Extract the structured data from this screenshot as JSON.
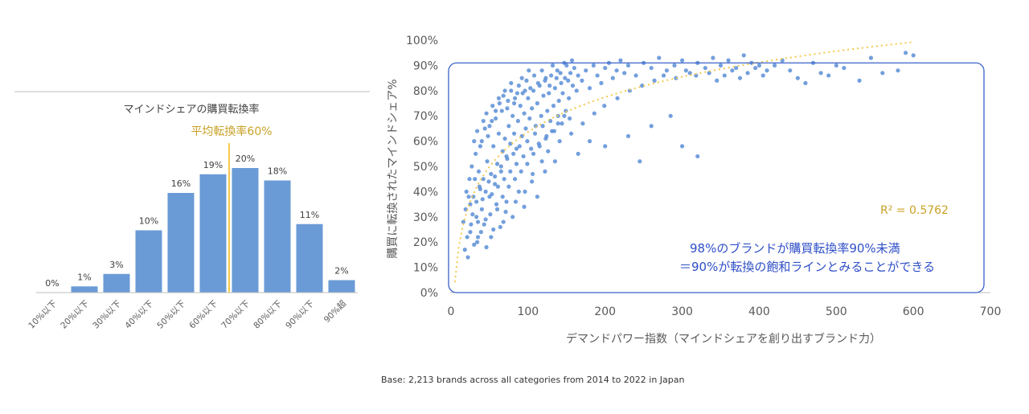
{
  "footer": {
    "base": "Base: 2,213 brands across all categories from 2014 to 2022 in Japan"
  },
  "chart_data": [
    {
      "type": "bar",
      "title": "マインドシェアの購買転換率",
      "categories": [
        "10%以下",
        "20%以下",
        "30%以下",
        "40%以下",
        "50%以下",
        "60%以下",
        "70%以下",
        "80%以下",
        "90%以下",
        "90%超"
      ],
      "values": [
        0,
        1,
        3,
        10,
        16,
        19,
        20,
        18,
        11,
        2
      ],
      "value_labels": [
        "0%",
        "1%",
        "3%",
        "10%",
        "16%",
        "19%",
        "20%",
        "18%",
        "11%",
        "2%"
      ],
      "ylim": [
        0,
        25
      ],
      "annotation": {
        "text": "平均転換率60%",
        "between_categories": [
          "60%以下",
          "70%以下"
        ],
        "color": "#c9a227"
      },
      "bar_color": "#6a9bd6"
    },
    {
      "type": "scatter",
      "xlabel": "デマンドパワー指数（マインドシェアを創り出すブランド力）",
      "ylabel": "購買に転換されたマインドシェア%",
      "xlim": [
        0,
        700
      ],
      "ylim": [
        0,
        100
      ],
      "xticks": [
        0,
        100,
        200,
        300,
        400,
        500,
        600,
        700
      ],
      "yticks": [
        "0%",
        "10%",
        "20%",
        "30%",
        "40%",
        "50%",
        "60%",
        "70%",
        "80%",
        "90%",
        "100%"
      ],
      "trendline": {
        "type": "log",
        "r2_label": "R² = 0.5762",
        "color": "#f2c94c"
      },
      "annotation_lines": [
        "98%のブランドが購買転換率90%未満",
        "＝90%が転換の飽和ラインとみることができる"
      ],
      "highlight_box": {
        "y_top": 91,
        "y_bottom": 0,
        "color": "#3a62c9"
      },
      "point_color": "#5b8ed6",
      "points": [
        [
          18,
          17
        ],
        [
          22,
          14
        ],
        [
          25,
          24
        ],
        [
          28,
          31
        ],
        [
          30,
          19
        ],
        [
          33,
          36
        ],
        [
          35,
          28
        ],
        [
          38,
          41
        ],
        [
          40,
          33
        ],
        [
          42,
          45
        ],
        [
          45,
          29
        ],
        [
          47,
          52
        ],
        [
          50,
          38
        ],
        [
          52,
          47
        ],
        [
          55,
          58
        ],
        [
          57,
          43
        ],
        [
          60,
          51
        ],
        [
          62,
          63
        ],
        [
          65,
          48
        ],
        [
          67,
          56
        ],
        [
          70,
          61
        ],
        [
          72,
          54
        ],
        [
          75,
          66
        ],
        [
          77,
          59
        ],
        [
          80,
          70
        ],
        [
          82,
          63
        ],
        [
          85,
          57
        ],
        [
          87,
          68
        ],
        [
          90,
          74
        ],
        [
          92,
          62
        ],
        [
          95,
          71
        ],
        [
          97,
          65
        ],
        [
          100,
          77
        ],
        [
          102,
          69
        ],
        [
          105,
          73
        ],
        [
          107,
          80
        ],
        [
          110,
          66
        ],
        [
          112,
          75
        ],
        [
          115,
          82
        ],
        [
          117,
          70
        ],
        [
          120,
          78
        ],
        [
          122,
          84
        ],
        [
          125,
          72
        ],
        [
          127,
          79
        ],
        [
          130,
          86
        ],
        [
          133,
          74
        ],
        [
          135,
          81
        ],
        [
          138,
          88
        ],
        [
          140,
          76
        ],
        [
          143,
          83
        ],
        [
          145,
          79
        ],
        [
          148,
          85
        ],
        [
          150,
          90
        ],
        [
          153,
          77
        ],
        [
          155,
          87
        ],
        [
          158,
          82
        ],
        [
          160,
          89
        ],
        [
          163,
          80
        ],
        [
          165,
          86
        ],
        [
          170,
          84
        ],
        [
          175,
          88
        ],
        [
          180,
          81
        ],
        [
          185,
          90
        ],
        [
          190,
          86
        ],
        [
          195,
          83
        ],
        [
          200,
          89
        ],
        [
          205,
          91
        ],
        [
          210,
          85
        ],
        [
          215,
          88
        ],
        [
          220,
          92
        ],
        [
          225,
          87
        ],
        [
          230,
          90
        ],
        [
          240,
          86
        ],
        [
          250,
          91
        ],
        [
          260,
          89
        ],
        [
          270,
          93
        ],
        [
          280,
          88
        ],
        [
          290,
          90
        ],
        [
          300,
          92
        ],
        [
          310,
          87
        ],
        [
          320,
          91
        ],
        [
          330,
          89
        ],
        [
          340,
          93
        ],
        [
          350,
          90
        ],
        [
          360,
          92
        ],
        [
          370,
          89
        ],
        [
          380,
          94
        ],
        [
          390,
          91
        ],
        [
          400,
          90
        ],
        [
          410,
          88
        ],
        [
          430,
          92
        ],
        [
          450,
          85
        ],
        [
          460,
          83
        ],
        [
          480,
          87
        ],
        [
          500,
          90
        ],
        [
          530,
          84
        ],
        [
          580,
          88
        ],
        [
          590,
          95
        ],
        [
          600,
          94
        ],
        [
          20,
          40
        ],
        [
          24,
          45
        ],
        [
          27,
          50
        ],
        [
          32,
          55
        ],
        [
          36,
          48
        ],
        [
          40,
          60
        ],
        [
          44,
          65
        ],
        [
          48,
          62
        ],
        [
          53,
          68
        ],
        [
          58,
          72
        ],
        [
          63,
          75
        ],
        [
          68,
          78
        ],
        [
          73,
          73
        ],
        [
          78,
          80
        ],
        [
          83,
          77
        ],
        [
          88,
          82
        ],
        [
          93,
          79
        ],
        [
          98,
          84
        ],
        [
          103,
          81
        ],
        [
          108,
          86
        ],
        [
          113,
          83
        ],
        [
          118,
          88
        ],
        [
          123,
          85
        ],
        [
          128,
          82
        ],
        [
          132,
          90
        ],
        [
          137,
          85
        ],
        [
          142,
          87
        ],
        [
          147,
          91
        ],
        [
          152,
          84
        ],
        [
          157,
          92
        ],
        [
          30,
          60
        ],
        [
          34,
          64
        ],
        [
          38,
          58
        ],
        [
          42,
          68
        ],
        [
          46,
          71
        ],
        [
          50,
          66
        ],
        [
          54,
          74
        ],
        [
          58,
          69
        ],
        [
          62,
          77
        ],
        [
          66,
          72
        ],
        [
          70,
          80
        ],
        [
          74,
          76
        ],
        [
          78,
          83
        ],
        [
          82,
          75
        ],
        [
          86,
          79
        ],
        [
          92,
          85
        ],
        [
          96,
          80
        ],
        [
          101,
          88
        ],
        [
          25,
          35
        ],
        [
          29,
          38
        ],
        [
          33,
          30
        ],
        [
          37,
          42
        ],
        [
          41,
          37
        ],
        [
          45,
          40
        ],
        [
          49,
          44
        ],
        [
          53,
          39
        ],
        [
          57,
          46
        ],
        [
          61,
          42
        ],
        [
          65,
          50
        ],
        [
          69,
          45
        ],
        [
          73,
          53
        ],
        [
          77,
          48
        ],
        [
          81,
          55
        ],
        [
          85,
          51
        ],
        [
          89,
          58
        ],
        [
          94,
          54
        ],
        [
          99,
          60
        ],
        [
          104,
          57
        ],
        [
          109,
          63
        ],
        [
          114,
          59
        ],
        [
          119,
          66
        ],
        [
          124,
          62
        ],
        [
          129,
          68
        ],
        [
          134,
          64
        ],
        [
          139,
          70
        ],
        [
          144,
          67
        ],
        [
          149,
          72
        ],
        [
          154,
          69
        ],
        [
          35,
          22
        ],
        [
          43,
          27
        ],
        [
          51,
          31
        ],
        [
          59,
          35
        ],
        [
          67,
          38
        ],
        [
          75,
          42
        ],
        [
          83,
          45
        ],
        [
          91,
          48
        ],
        [
          99,
          51
        ],
        [
          107,
          55
        ],
        [
          115,
          58
        ],
        [
          123,
          61
        ],
        [
          131,
          64
        ],
        [
          139,
          67
        ],
        [
          147,
          70
        ],
        [
          55,
          25
        ],
        [
          60,
          33
        ],
        [
          68,
          28
        ],
        [
          72,
          36
        ],
        [
          80,
          30
        ],
        [
          88,
          40
        ],
        [
          95,
          34
        ],
        [
          105,
          44
        ],
        [
          112,
          38
        ],
        [
          122,
          48
        ],
        [
          135,
          52
        ],
        [
          165,
          55
        ],
        [
          180,
          60
        ],
        [
          200,
          58
        ],
        [
          245,
          52
        ],
        [
          300,
          58
        ],
        [
          320,
          54
        ],
        [
          230,
          62
        ],
        [
          260,
          66
        ],
        [
          285,
          70
        ],
        [
          16,
          28
        ],
        [
          19,
          33
        ],
        [
          21,
          22
        ],
        [
          23,
          38
        ],
        [
          26,
          27
        ],
        [
          31,
          45
        ],
        [
          34,
          20
        ],
        [
          39,
          24
        ],
        [
          46,
          18
        ],
        [
          52,
          22
        ],
        [
          64,
          26
        ],
        [
          71,
          32
        ],
        [
          84,
          36
        ],
        [
          96,
          40
        ],
        [
          106,
          47
        ],
        [
          118,
          52
        ],
        [
          126,
          56
        ],
        [
          141,
          60
        ],
        [
          156,
          63
        ],
        [
          171,
          67
        ],
        [
          186,
          71
        ],
        [
          199,
          74
        ],
        [
          216,
          77
        ],
        [
          232,
          80
        ],
        [
          248,
          82
        ],
        [
          264,
          84
        ],
        [
          276,
          86
        ],
        [
          292,
          85
        ],
        [
          305,
          88
        ],
        [
          318,
          86
        ],
        [
          335,
          87
        ],
        [
          345,
          84
        ],
        [
          355,
          86
        ],
        [
          365,
          88
        ],
        [
          375,
          85
        ],
        [
          385,
          87
        ],
        [
          395,
          89
        ],
        [
          405,
          86
        ],
        [
          420,
          90
        ],
        [
          440,
          88
        ],
        [
          470,
          91
        ],
        [
          490,
          86
        ],
        [
          510,
          89
        ],
        [
          545,
          93
        ],
        [
          560,
          87
        ]
      ]
    }
  ]
}
